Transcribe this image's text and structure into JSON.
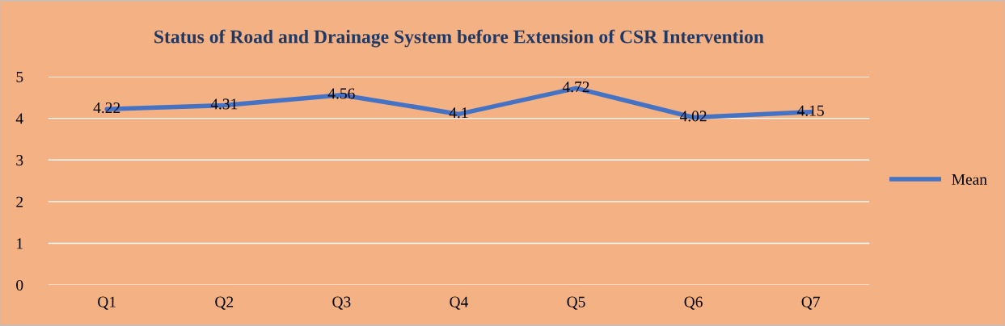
{
  "chart_data": {
    "type": "line",
    "title": "Status of Road and Drainage System before Extension of CSR Intervention",
    "categories": [
      "Q1",
      "Q2",
      "Q3",
      "Q4",
      "Q5",
      "Q6",
      "Q7"
    ],
    "series": [
      {
        "name": "Mean",
        "color": "#4472c4",
        "values": [
          4.22,
          4.31,
          4.56,
          4.1,
          4.72,
          4.02,
          4.15
        ]
      }
    ],
    "ylim": [
      0,
      5
    ],
    "yticks": [
      0,
      1,
      2,
      3,
      4,
      5
    ],
    "grid": "y",
    "legend": "right",
    "data_labels": true,
    "marker": "none",
    "line_style": "solid"
  }
}
